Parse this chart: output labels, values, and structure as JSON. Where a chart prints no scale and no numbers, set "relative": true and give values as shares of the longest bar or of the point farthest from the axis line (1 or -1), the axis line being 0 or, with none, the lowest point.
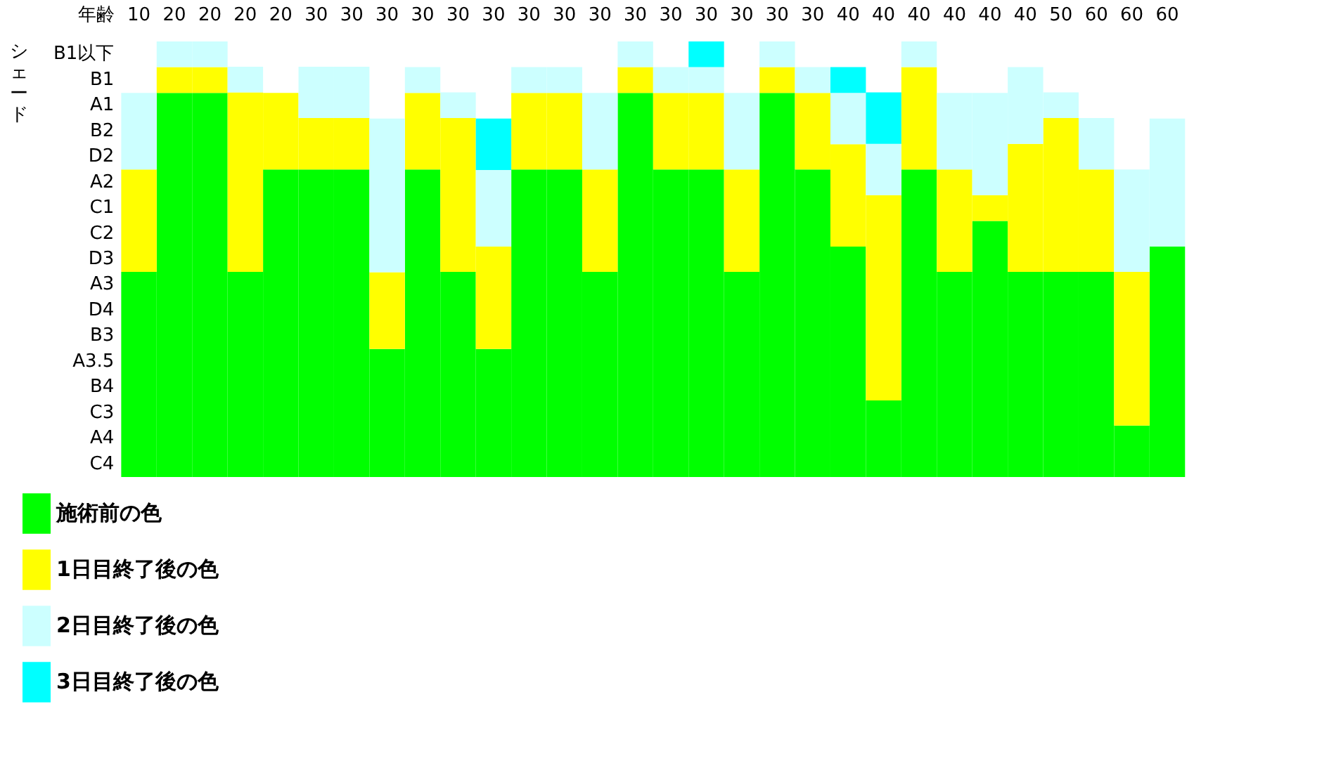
{
  "chart_data": {
    "type": "bar",
    "stacked": true,
    "relative": true,
    "xlabel": "年齢",
    "categories": [
      "10",
      "20",
      "20",
      "20",
      "20",
      "30",
      "30",
      "30",
      "30",
      "30",
      "30",
      "30",
      "30",
      "30",
      "30",
      "30",
      "30",
      "30",
      "30",
      "30",
      "40",
      "40",
      "40",
      "40",
      "40",
      "40",
      "50",
      "60",
      "60",
      "60"
    ],
    "series": [
      {
        "name": "施術前の色",
        "color": "#00ff00",
        "values": [
          0.471,
          0.882,
          0.882,
          0.471,
          0.706,
          0.706,
          0.706,
          0.294,
          0.706,
          0.471,
          0.294,
          0.706,
          0.706,
          0.471,
          0.882,
          0.706,
          0.706,
          0.471,
          0.882,
          0.706,
          0.529,
          0.176,
          0.706,
          0.471,
          0.588,
          0.471,
          0.471,
          0.471,
          0.118,
          0.529
        ]
      },
      {
        "name": "1日目終了後の色",
        "color": "#ffff00",
        "values": [
          0.235,
          0.059,
          0.059,
          0.412,
          0.176,
          0.118,
          0.118,
          0.176,
          0.176,
          0.353,
          0.235,
          0.176,
          0.176,
          0.235,
          0.059,
          0.176,
          0.176,
          0.235,
          0.059,
          0.176,
          0.235,
          0.471,
          0.235,
          0.235,
          0.059,
          0.294,
          0.353,
          0.235,
          0.353,
          0
        ]
      },
      {
        "name": "2日目終了後の色",
        "color": "#ccffff",
        "values": [
          0.176,
          0.059,
          0.059,
          0.059,
          0,
          0.118,
          0.118,
          0.353,
          0.059,
          0.059,
          0.176,
          0.059,
          0.059,
          0.176,
          0.059,
          0.059,
          0.059,
          0.176,
          0.059,
          0.059,
          0.118,
          0.118,
          0.059,
          0.176,
          0.235,
          0.176,
          0.059,
          0.118,
          0.235,
          0.294
        ]
      },
      {
        "name": "3日目終了後の色",
        "color": "#00ffff",
        "values": [
          0,
          0,
          0,
          0,
          0,
          0,
          0,
          0,
          0,
          0,
          0.118,
          0,
          0,
          0,
          0,
          0,
          0.059,
          0,
          0,
          0,
          0.059,
          0.118,
          0,
          0,
          0,
          0,
          0,
          0,
          0,
          0
        ]
      }
    ],
    "annotations": [
      "B1以下",
      "B1",
      "A1",
      "B2",
      "D2",
      "A2",
      "C1",
      "C2",
      "D3",
      "A3",
      "D4",
      "B3",
      "A3.5",
      "B4",
      "C3",
      "A4",
      "C4",
      "シェード"
    ],
    "legend": "bottom left"
  }
}
